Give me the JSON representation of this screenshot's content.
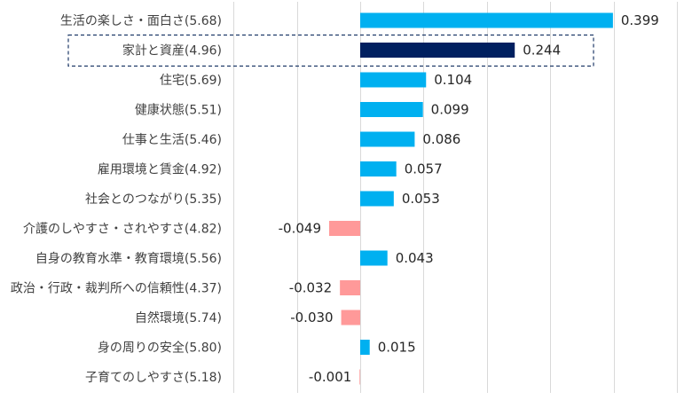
{
  "chart_data": {
    "type": "bar",
    "orientation": "horizontal",
    "categories": [
      "生活の楽しさ・面白さ(5.68)",
      "家計と資産(4.96)",
      "住宅(5.69)",
      "健康状態(5.51)",
      "仕事と生活(5.46)",
      "雇用環境と賃金(4.92)",
      "社会とのつながり(5.35)",
      "介護のしやすさ・されやすさ(4.82)",
      "自身の教育水準・教育環境(5.56)",
      "政治・行政・裁判所への信頼性(4.37)",
      "自然環境(5.74)",
      "身の周りの安全(5.80)",
      "子育てのしやすさ(5.18)"
    ],
    "values": [
      0.399,
      0.244,
      0.104,
      0.099,
      0.086,
      0.057,
      0.053,
      -0.049,
      0.043,
      -0.032,
      -0.03,
      0.015,
      -0.001
    ],
    "value_labels": [
      "0.399",
      "0.244",
      "0.104",
      "0.099",
      "0.086",
      "0.057",
      "0.053",
      "-0.049",
      "0.043",
      "-0.032",
      "-0.030",
      "0.015",
      "-0.001"
    ],
    "highlighted_category": "家計と資産(4.96)",
    "xlim": [
      -0.2,
      0.5
    ],
    "grid_step": 0.1,
    "grid": true,
    "colors": {
      "positive": "#00b0f0",
      "negative": "#ff9999",
      "highlight": "#002060",
      "grid": "#d9d9d9",
      "highlight_border": "#1f3a68"
    }
  }
}
